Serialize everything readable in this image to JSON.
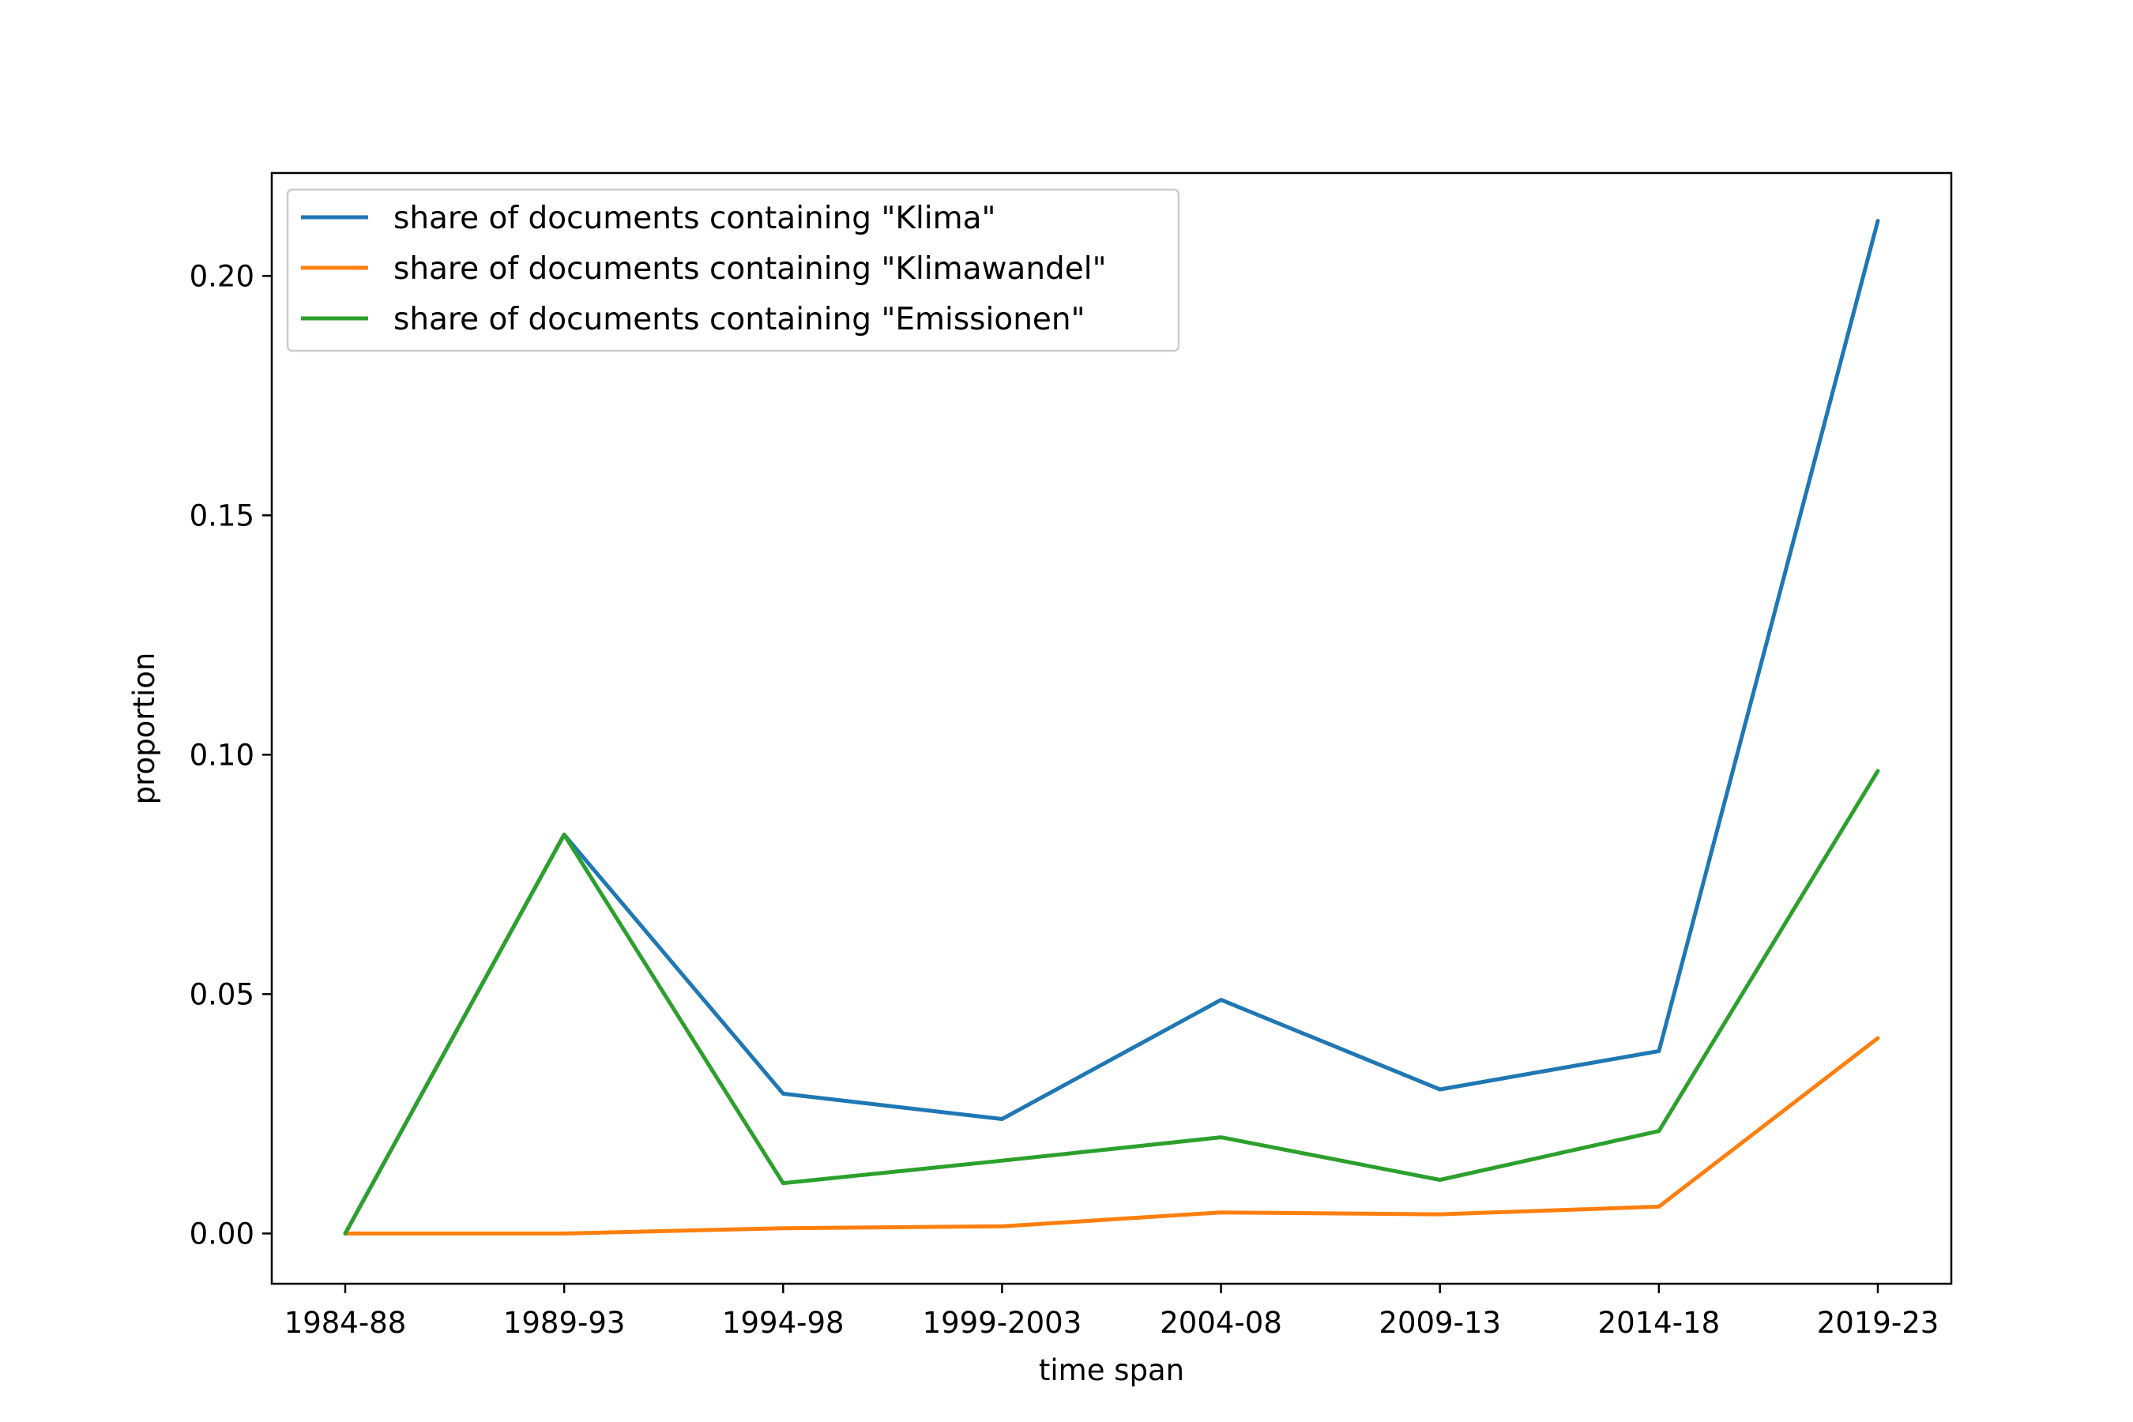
{
  "chart_data": {
    "type": "line",
    "title": "",
    "xlabel": "time span",
    "ylabel": "proportion",
    "categories": [
      "1984-88",
      "1989-93",
      "1994-98",
      "1999-2003",
      "2004-08",
      "2009-13",
      "2014-18",
      "2019-23"
    ],
    "ylim": [
      -0.0105,
      0.2215
    ],
    "yticks": [
      "0.00",
      "0.05",
      "0.10",
      "0.15",
      "0.20"
    ],
    "grid": false,
    "legend_position": "upper-left",
    "series": [
      {
        "name": "share of documents containing \"Klima\"",
        "color": "#1f77b4",
        "values": [
          0.0,
          0.0833,
          0.0292,
          0.0239,
          0.0488,
          0.0301,
          0.0381,
          0.2115
        ]
      },
      {
        "name": "share of documents containing \"Klimawandel\"",
        "color": "#ff7f0e",
        "values": [
          0.0,
          0.0,
          0.0011,
          0.0015,
          0.0044,
          0.004,
          0.0056,
          0.0408
        ]
      },
      {
        "name": "share of documents containing \"Emissionen\"",
        "color": "#2ca02c",
        "values": [
          0.0,
          0.0833,
          0.0105,
          0.0152,
          0.0201,
          0.0112,
          0.0214,
          0.0966
        ]
      }
    ]
  }
}
